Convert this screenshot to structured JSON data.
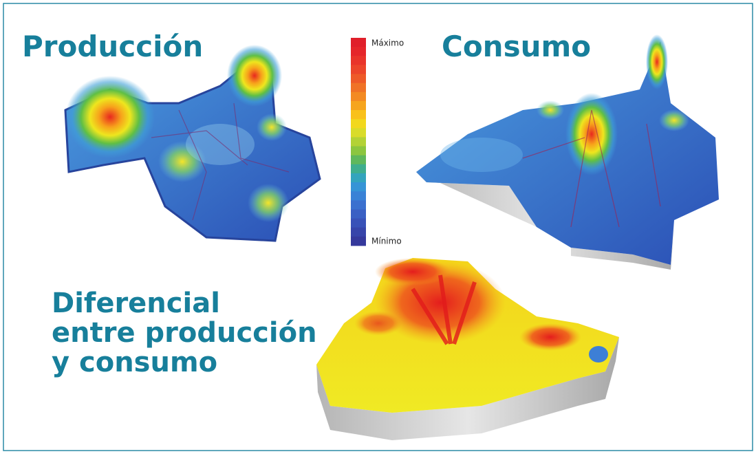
{
  "panels": {
    "production": {
      "title": "Producción"
    },
    "consumption": {
      "title": "Consumo"
    },
    "difference": {
      "title_lines": [
        "Diferencial",
        "entre producción",
        "y consumo"
      ]
    }
  },
  "legend": {
    "max": "Máximo",
    "min": "Mínimo"
  }
}
